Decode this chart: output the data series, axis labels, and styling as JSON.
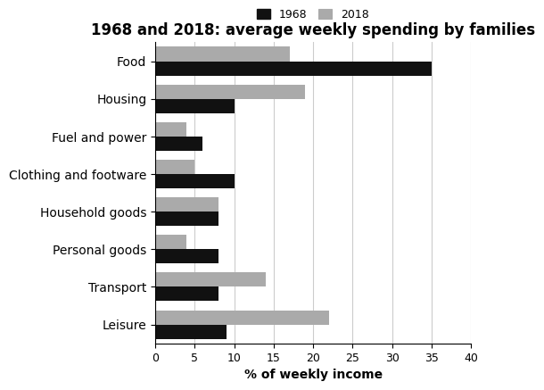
{
  "title": "1968 and 2018: average weekly spending by families",
  "categories": [
    "Food",
    "Housing",
    "Fuel and power",
    "Clothing and footware",
    "Household goods",
    "Personal goods",
    "Transport",
    "Leisure"
  ],
  "values_1968": [
    35,
    10,
    6,
    10,
    8,
    8,
    8,
    9
  ],
  "values_2018": [
    17,
    19,
    4,
    5,
    8,
    4,
    14,
    22
  ],
  "color_1968": "#111111",
  "color_2018": "#aaaaaa",
  "xlabel": "% of weekly income",
  "xlim": [
    0,
    40
  ],
  "xticks": [
    0,
    5,
    10,
    15,
    20,
    25,
    30,
    35,
    40
  ],
  "legend_labels": [
    "1968",
    "2018"
  ],
  "bar_height": 0.38,
  "grid_color": "#cccccc",
  "title_fontsize": 12,
  "label_fontsize": 10,
  "tick_fontsize": 9
}
